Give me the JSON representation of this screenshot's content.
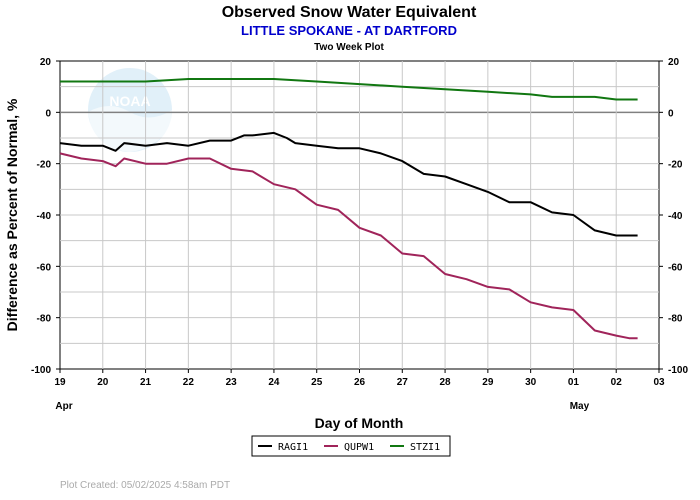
{
  "title": "Observed Snow Water Equivalent",
  "subtitle": "LITTLE SPOKANE - AT DARTFORD",
  "plot_caption": "Two Week Plot",
  "footer": "Plot Created: 05/02/2025 4:58am PDT",
  "logo_text": "NOAA",
  "colors": {
    "subtitle": "#0000cc",
    "grid": "#c8c8c8",
    "zero_line": "#808080",
    "logo": "#dceef8",
    "footer": "#aaaaaa"
  },
  "chart_data": {
    "type": "line",
    "title": "Observed Snow Water Equivalent",
    "subtitle": "LITTLE SPOKANE - AT DARTFORD",
    "xlabel": "Day of Month",
    "ylabel": "Difference as Percent of Normal, %",
    "ylim": [
      -100,
      20
    ],
    "xlim": [
      0,
      14
    ],
    "y_ticks": [
      20,
      0,
      -20,
      -40,
      -60,
      -80,
      -100
    ],
    "x_ticks": [
      "19",
      "20",
      "21",
      "22",
      "23",
      "24",
      "25",
      "26",
      "27",
      "28",
      "29",
      "30",
      "01",
      "02",
      "03"
    ],
    "month_labels": [
      {
        "text": "Apr",
        "x": 0
      },
      {
        "text": "May",
        "x": 12
      }
    ],
    "grid": true,
    "legend_position": "bottom-center",
    "series": [
      {
        "name": "RAGI1",
        "color": "#000000",
        "x": [
          0,
          0.5,
          1,
          1.3,
          1.5,
          2,
          2.5,
          3,
          3.5,
          4,
          4.3,
          4.5,
          5,
          5.3,
          5.5,
          6,
          6.5,
          7,
          7.5,
          8,
          8.5,
          9,
          9.5,
          10,
          10.5,
          11,
          11.5,
          12,
          12.5,
          13,
          13.3,
          13.5
        ],
        "y": [
          -12,
          -13,
          -13,
          -15,
          -12,
          -13,
          -12,
          -13,
          -11,
          -11,
          -9,
          -9,
          -8,
          -10,
          -12,
          -13,
          -14,
          -14,
          -16,
          -19,
          -24,
          -25,
          -28,
          -31,
          -35,
          -35,
          -39,
          -40,
          -46,
          -48,
          -48,
          -48
        ]
      },
      {
        "name": "QUPW1",
        "color": "#a0245a",
        "x": [
          0,
          0.5,
          1,
          1.3,
          1.5,
          2,
          2.5,
          3,
          3.5,
          4,
          4.5,
          5,
          5.5,
          6,
          6.5,
          7,
          7.5,
          8,
          8.5,
          9,
          9.5,
          10,
          10.5,
          11,
          11.5,
          12,
          12.5,
          13,
          13.3,
          13.5
        ],
        "y": [
          -16,
          -18,
          -19,
          -21,
          -18,
          -20,
          -20,
          -18,
          -18,
          -22,
          -23,
          -28,
          -30,
          -36,
          -38,
          -45,
          -48,
          -55,
          -56,
          -63,
          -65,
          -68,
          -69,
          -74,
          -76,
          -77,
          -85,
          -87,
          -88,
          -88
        ]
      },
      {
        "name": "STZI1",
        "color": "#117711",
        "x": [
          0,
          1,
          2,
          3,
          4,
          5,
          6,
          7,
          8,
          9,
          10,
          11,
          11.5,
          12,
          12.5,
          13,
          13.3,
          13.5
        ],
        "y": [
          12,
          12,
          12,
          13,
          13,
          13,
          12,
          11,
          10,
          9,
          8,
          7,
          6,
          6,
          6,
          5,
          5,
          5
        ]
      }
    ]
  }
}
